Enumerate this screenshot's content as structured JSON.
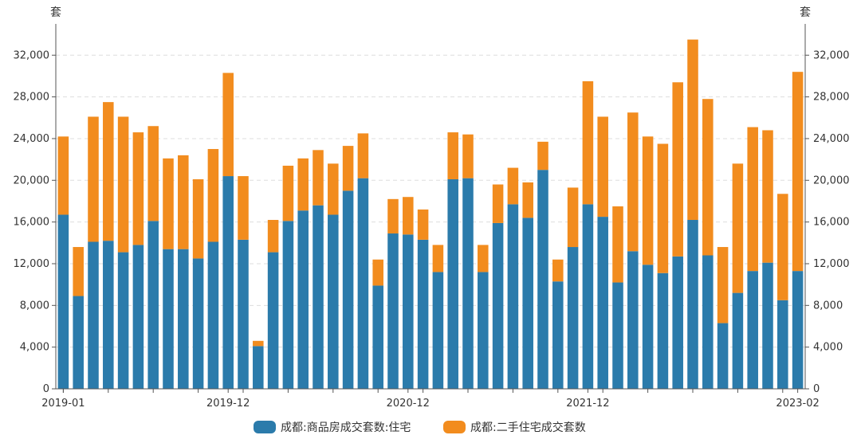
{
  "chart_data": {
    "type": "bar",
    "stacked": true,
    "y_unit_left": "套",
    "y_unit_right": "套",
    "ylim": [
      0,
      35000
    ],
    "y_ticks": [
      0,
      4000,
      8000,
      12000,
      16000,
      20000,
      24000,
      28000,
      32000
    ],
    "y_tick_labels": [
      "0",
      "4,000",
      "8,000",
      "12,000",
      "16,000",
      "20,000",
      "24,000",
      "28,000",
      "32,000"
    ],
    "x_tick_labels": [
      {
        "index": 0,
        "label": "2019-01"
      },
      {
        "index": 11,
        "label": "2019-12"
      },
      {
        "index": 23,
        "label": "2020-12"
      },
      {
        "index": 35,
        "label": "2021-12"
      },
      {
        "index": 49,
        "label": "2023-02"
      }
    ],
    "categories": [
      "2019-01",
      "2019-02",
      "2019-03",
      "2019-04",
      "2019-05",
      "2019-06",
      "2019-07",
      "2019-08",
      "2019-09",
      "2019-10",
      "2019-11",
      "2019-12",
      "2020-01",
      "2020-02",
      "2020-03",
      "2020-04",
      "2020-05",
      "2020-06",
      "2020-07",
      "2020-08",
      "2020-09",
      "2020-10",
      "2020-11",
      "2020-12",
      "2021-01",
      "2021-02",
      "2021-03",
      "2021-04",
      "2021-05",
      "2021-06",
      "2021-07",
      "2021-08",
      "2021-09",
      "2021-10",
      "2021-11",
      "2021-12",
      "2022-01",
      "2022-02",
      "2022-03",
      "2022-04",
      "2022-05",
      "2022-06",
      "2022-07",
      "2022-08",
      "2022-09",
      "2022-10",
      "2022-11",
      "2022-12",
      "2023-01",
      "2023-02"
    ],
    "series": [
      {
        "name": "成都:商品房成交套数:住宅",
        "color": "#2b7bab",
        "values": [
          16700,
          8900,
          14100,
          14200,
          13100,
          13800,
          16100,
          13400,
          13400,
          12500,
          14100,
          20400,
          14300,
          4100,
          13100,
          16100,
          17100,
          17600,
          16700,
          19000,
          20200,
          9900,
          14900,
          14800,
          14300,
          11200,
          20100,
          20200,
          11200,
          15900,
          17700,
          16400,
          21000,
          10300,
          13600,
          17700,
          16500,
          10200,
          13200,
          11900,
          11100,
          12700,
          16200,
          12800,
          6300,
          9200,
          11300,
          12100,
          8500,
          11300
        ]
      },
      {
        "name": "成都:二手住宅成交套数",
        "color": "#f28c1e",
        "values": [
          7500,
          4700,
          12000,
          13300,
          13000,
          10800,
          9100,
          8700,
          9000,
          7600,
          8900,
          9900,
          6100,
          500,
          3100,
          5300,
          5000,
          5300,
          4900,
          4300,
          4300,
          2500,
          3300,
          3600,
          2900,
          2600,
          4500,
          4200,
          2600,
          3700,
          3500,
          3400,
          2700,
          2100,
          5700,
          11800,
          9600,
          7300,
          13300,
          12300,
          12400,
          16700,
          17300,
          15000,
          7300,
          12400,
          13800,
          12700,
          10200,
          19100
        ]
      }
    ],
    "legend_position": "bottom-center",
    "grid_horizontal": true
  }
}
